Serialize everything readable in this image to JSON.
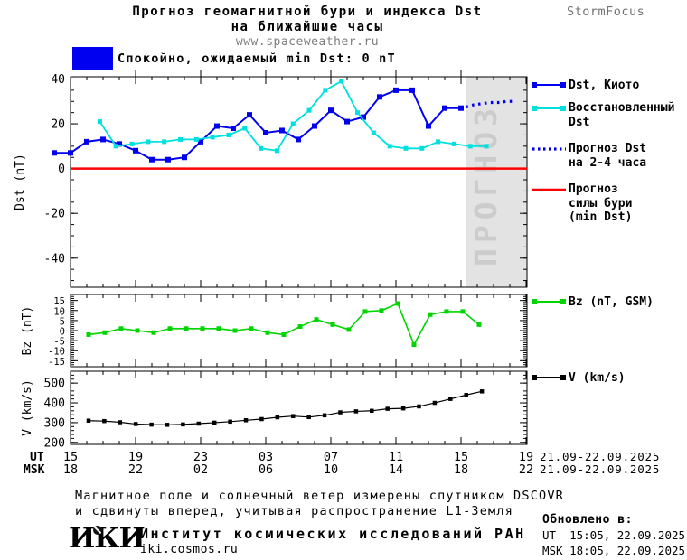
{
  "header": {
    "title_line1": "Прогноз геомагнитной бури и индекса Dst",
    "title_line2": "на ближайшие часы",
    "site": "www.spaceweather.ru",
    "brand": "StormFocus"
  },
  "status_banner": {
    "text": "Спокойно, ожидаемый min Dst: 0 nT",
    "color": "#0000f0"
  },
  "legend": {
    "items": [
      {
        "label": "Dst, Киото",
        "color": "#0000ee",
        "style": "squares"
      },
      {
        "label": "Восстановленный\nDst",
        "color": "#00e0e0",
        "style": "squares"
      },
      {
        "label": "Прогноз Dst\nна 2-4 часа",
        "color": "#0000ee",
        "style": "dotted"
      },
      {
        "label": "Прогноз\nсилы бури\n(min Dst)",
        "color": "#ff0000",
        "style": "solid"
      },
      {
        "label": "Bz (nT, GSM)",
        "color": "#00d500",
        "style": "squares"
      },
      {
        "label": "V (km/s)",
        "color": "#000000",
        "style": "squares"
      }
    ]
  },
  "chart_data": {
    "type": "line",
    "title": "Прогноз геомагнитной бури и индекса Dst на ближайшие часы",
    "x_axis": {
      "ut_label": "UT",
      "msk_label": "MSK",
      "ut_ticks": [
        "15",
        "19",
        "23",
        "03",
        "07",
        "11",
        "15",
        "19"
      ],
      "msk_ticks": [
        "18",
        "22",
        "02",
        "06",
        "10",
        "14",
        "18",
        "22"
      ],
      "ut_date": "21.09-22.09.2025",
      "msk_date": "21.09-22.09.2025",
      "tick_step_hours": 4
    },
    "panels": [
      {
        "ylabel": "Dst (nT)",
        "ylim": [
          -53,
          41
        ],
        "yticks": [
          40,
          20,
          0,
          -20,
          -40
        ],
        "ytick_minor": 5,
        "ylabel_size": 13,
        "forecast_region": {
          "start_hour": 25.28,
          "label": "ПРОГНОЗ",
          "fill": "#e3e3e3",
          "text_color": "#cccccc"
        },
        "series": [
          {
            "name": "Dst, Киото",
            "color": "#0000ee",
            "marker": "square",
            "marker_size": 6,
            "width": 2,
            "start_hour": 0,
            "step_hours": 1,
            "values": [
              7,
              7,
              12,
              13,
              11,
              8,
              4,
              4,
              5,
              12,
              19,
              18,
              24,
              16,
              17,
              13,
              19,
              26,
              21,
              23,
              32,
              35,
              35,
              19,
              27,
              27
            ]
          },
          {
            "name": "Восстановленный Dst",
            "color": "#00e0e0",
            "marker": "square",
            "marker_size": 5,
            "width": 1.8,
            "start_hour": 2.8,
            "step_hours": 0.99,
            "values": [
              21,
              10,
              11,
              12,
              12,
              13,
              13,
              14,
              15,
              18,
              9,
              8,
              20,
              26,
              35,
              39,
              25,
              16,
              10,
              9,
              9,
              12,
              11,
              10,
              10
            ]
          },
          {
            "name": "Прогноз Dst на 2-4 часа",
            "color": "#0000ee",
            "style": "dotted",
            "width": 3.2,
            "start_hour": 25.3,
            "step_hours": 0.5,
            "values": [
              27.5,
              28.5,
              29,
              29.5,
              29.5,
              30,
              30
            ]
          },
          {
            "name": "Прогноз силы бури (min Dst)",
            "color": "#ff0000",
            "type": "hline",
            "value": 0,
            "width": 2.4
          }
        ]
      },
      {
        "ylabel": "Bz (nT)",
        "ylim": [
          -18,
          18
        ],
        "yticks": [
          15,
          10,
          5,
          0,
          -5,
          -10,
          -15
        ],
        "ytick_minor": 1,
        "ylabel_size": 10.5,
        "series": [
          {
            "name": "Bz (nT, GSM)",
            "color": "#00d500",
            "marker": "square",
            "marker_size": 5,
            "width": 1.6,
            "start_hour": 2.11,
            "step_hours": 1.0,
            "values": [
              -2,
              -1,
              1,
              0,
              -1,
              1,
              1,
              1,
              1,
              0,
              1,
              -1,
              -2,
              2,
              5.5,
              3,
              0.5,
              9.5,
              10,
              13.5,
              -7,
              8,
              9.5,
              9.5,
              3
            ]
          }
        ]
      },
      {
        "ylabel": "V (km/s)",
        "ylim": [
          190,
          560
        ],
        "yticks": [
          500,
          400,
          300,
          200
        ],
        "ytick_minor": 20,
        "ylabel_size": 13,
        "series": [
          {
            "name": "V (km/s)",
            "color": "#000000",
            "marker": "square",
            "marker_size": 4.5,
            "width": 1.2,
            "start_hour": 2.11,
            "step_hours": 0.967,
            "values": [
              310,
              308,
              302,
              293,
              290,
              289,
              291,
              295,
              300,
              305,
              312,
              318,
              327,
              333,
              328,
              337,
              352,
              357,
              360,
              370,
              372,
              382,
              400,
              420,
              440,
              458
            ]
          }
        ]
      }
    ]
  },
  "footer": {
    "note_line1": "Магнитное поле и солнечный ветер измерены спутником DSCOVR",
    "note_line2": "и сдвинуты вперед, учитывая распространение L1-Земля",
    "logo": "ИКИ",
    "institute": "Институт космических исследований РАН",
    "site": "iki.cosmos.ru",
    "updated_label": "Обновлено в:",
    "updated_ut": "UT  15:05, 22.09.2025",
    "updated_msk": "MSK 18:05, 22.09.2025"
  }
}
